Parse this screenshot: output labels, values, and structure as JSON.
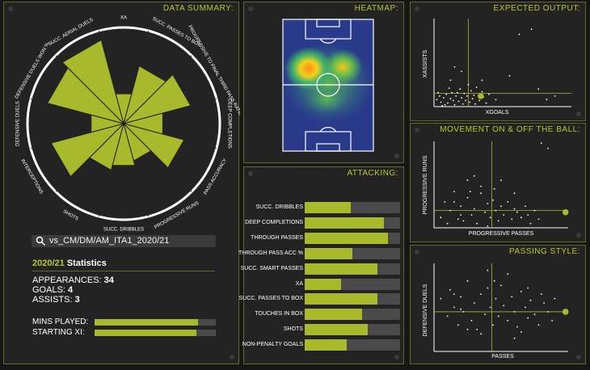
{
  "summary": {
    "title": "DATA SUMMARY:",
    "search_value": "vs_CM/DM/AM_ITA1_2020/21",
    "stats_year": "2020/21",
    "stats_label": "Statistics",
    "appearances_label": "APPEARANCES:",
    "appearances_value": "34",
    "goals_label": "GOALS:",
    "goals_value": "4",
    "assists_label": "ASSISTS:",
    "assists_value": "3",
    "mins_label": "MINS PLAYED:",
    "mins_fraction": 0.85,
    "starting_label": "STARTING XI:",
    "starting_fraction": 0.84
  },
  "heatmap": {
    "title": "HEATMAP:"
  },
  "attacking": {
    "title": "ATTACKING:"
  },
  "expected": {
    "title": "EXPECTED OUTPUT:",
    "xlabel": "XGOALS",
    "ylabel": "XASSISTS"
  },
  "movement": {
    "title": "MOVEMENT ON & OFF THE BALL:",
    "xlabel": "PROGRESSIVE PASSES",
    "ylabel": "PROGRESSIVE RUNS"
  },
  "passing": {
    "title": "PASSING STYLE:",
    "xlabel": "PASSES",
    "ylabel": "DEFENSIVE DUELS"
  },
  "colors": {
    "accent": "#a8b92c",
    "title": "#b7c92e",
    "panel": "#232323",
    "border": "#5f6a2a"
  },
  "chart_data": [
    {
      "type": "radar",
      "title": "DATA SUMMARY",
      "categories": [
        "XA",
        "SUCC. PASSES TO BOX",
        "PROGRESSIVE TO FINAL THIRD PASS RATIO",
        "DEEP COMPLETIONS",
        "PASS ACCURACY",
        "PROGRESSIVE RUNS",
        "SUCC. DRIBBLES",
        "SHOTS",
        "INTERCEPTIONS",
        "DEFENSIVE DUELS",
        "DEFENSIVE DUELS WON %",
        "SUCC. AERIAL DUELS"
      ],
      "values": [
        0.32,
        0.62,
        0.72,
        0.42,
        0.65,
        0.4,
        0.45,
        0.5,
        0.78,
        0.35,
        0.82,
        0.9
      ],
      "ylim": [
        0,
        1
      ]
    },
    {
      "type": "bar",
      "title": "ATTACKING",
      "categories": [
        "SUCC. DRIBBLES",
        "DEEP COMPLETIONS",
        "THROUGH PASSES",
        "THROUGH PASS ACC %",
        "SUCC. SMART PASSES",
        "XA",
        "SUCC. PASSES TO BOX",
        "TOUCHES IN BOX",
        "SHOTS",
        "NON-PENALTY GOALS"
      ],
      "values": [
        0.48,
        0.83,
        0.87,
        0.5,
        0.76,
        0.38,
        0.76,
        0.6,
        0.66,
        0.44
      ],
      "ylim": [
        0,
        1
      ]
    },
    {
      "type": "scatter",
      "title": "EXPECTED OUTPUT",
      "xlabel": "XGOALS",
      "ylabel": "XASSISTS",
      "xlim": [
        0,
        1
      ],
      "ylim": [
        0,
        1
      ],
      "ref_x": 0.25,
      "ref_y": 0.15,
      "highlight": [
        0.34,
        0.12
      ],
      "points": [
        [
          0.02,
          0.08
        ],
        [
          0.05,
          0.05
        ],
        [
          0.07,
          0.1
        ],
        [
          0.09,
          0.14
        ],
        [
          0.1,
          0.04
        ],
        [
          0.12,
          0.09
        ],
        [
          0.13,
          0.16
        ],
        [
          0.15,
          0.02
        ],
        [
          0.16,
          0.12
        ],
        [
          0.18,
          0.06
        ],
        [
          0.19,
          0.2
        ],
        [
          0.2,
          0.1
        ],
        [
          0.21,
          0.03
        ],
        [
          0.22,
          0.15
        ],
        [
          0.23,
          0.07
        ],
        [
          0.24,
          0.12
        ],
        [
          0.25,
          0.25
        ],
        [
          0.26,
          0.05
        ],
        [
          0.27,
          0.18
        ],
        [
          0.28,
          0.09
        ],
        [
          0.29,
          0.13
        ],
        [
          0.3,
          0.03
        ],
        [
          0.31,
          0.22
        ],
        [
          0.33,
          0.07
        ],
        [
          0.35,
          0.17
        ],
        [
          0.36,
          0.11
        ],
        [
          0.38,
          0.04
        ],
        [
          0.4,
          0.14
        ],
        [
          0.03,
          0.16
        ],
        [
          0.06,
          0.01
        ],
        [
          0.11,
          0.21
        ],
        [
          0.14,
          0.07
        ],
        [
          0.17,
          0.16
        ],
        [
          0.04,
          0.12
        ],
        [
          0.08,
          0.02
        ],
        [
          0.45,
          0.08
        ],
        [
          0.12,
          0.3
        ],
        [
          0.55,
          0.35
        ],
        [
          0.62,
          0.82
        ],
        [
          0.71,
          0.88
        ],
        [
          0.82,
          0.08
        ],
        [
          0.88,
          0.12
        ],
        [
          0.76,
          0.2
        ],
        [
          0.15,
          0.45
        ],
        [
          0.35,
          0.3
        ],
        [
          0.2,
          0.4
        ]
      ]
    },
    {
      "type": "scatter",
      "title": "MOVEMENT ON & OFF THE BALL",
      "xlabel": "PROGRESSIVE PASSES",
      "ylabel": "PROGRESSIVE RUNS",
      "xlim": [
        0,
        1
      ],
      "ylim": [
        0,
        1
      ],
      "ref_x": 0.43,
      "ref_y": 0.2,
      "highlight": [
        0.98,
        0.18
      ],
      "points": [
        [
          0.05,
          0.12
        ],
        [
          0.1,
          0.05
        ],
        [
          0.12,
          0.2
        ],
        [
          0.15,
          0.3
        ],
        [
          0.18,
          0.1
        ],
        [
          0.2,
          0.25
        ],
        [
          0.22,
          0.08
        ],
        [
          0.25,
          0.35
        ],
        [
          0.28,
          0.15
        ],
        [
          0.3,
          0.22
        ],
        [
          0.32,
          0.05
        ],
        [
          0.35,
          0.4
        ],
        [
          0.38,
          0.18
        ],
        [
          0.4,
          0.28
        ],
        [
          0.42,
          0.12
        ],
        [
          0.44,
          0.32
        ],
        [
          0.46,
          0.2
        ],
        [
          0.48,
          0.08
        ],
        [
          0.5,
          0.25
        ],
        [
          0.52,
          0.15
        ],
        [
          0.55,
          0.3
        ],
        [
          0.58,
          0.1
        ],
        [
          0.6,
          0.22
        ],
        [
          0.62,
          0.18
        ],
        [
          0.65,
          0.12
        ],
        [
          0.68,
          0.25
        ],
        [
          0.7,
          0.15
        ],
        [
          0.72,
          0.05
        ],
        [
          0.75,
          0.2
        ],
        [
          0.78,
          0.1
        ],
        [
          0.3,
          0.6
        ],
        [
          0.25,
          0.55
        ],
        [
          0.45,
          0.45
        ],
        [
          0.8,
          0.98
        ],
        [
          0.85,
          0.92
        ],
        [
          0.15,
          0.42
        ],
        [
          0.35,
          0.48
        ],
        [
          0.08,
          0.3
        ],
        [
          0.4,
          0.02
        ],
        [
          0.6,
          0.4
        ],
        [
          0.2,
          0.15
        ],
        [
          0.27,
          0.42
        ],
        [
          0.5,
          0.55
        ]
      ]
    },
    {
      "type": "scatter",
      "title": "PASSING STYLE",
      "xlabel": "PASSES",
      "ylabel": "DEFENSIVE DUELS",
      "xlim": [
        0,
        1
      ],
      "ylim": [
        0,
        1
      ],
      "ref_x": 0.43,
      "ref_y": 0.45,
      "highlight": [
        0.98,
        0.45
      ],
      "points": [
        [
          0.05,
          0.6
        ],
        [
          0.1,
          0.4
        ],
        [
          0.12,
          0.7
        ],
        [
          0.15,
          0.5
        ],
        [
          0.18,
          0.3
        ],
        [
          0.2,
          0.62
        ],
        [
          0.22,
          0.45
        ],
        [
          0.25,
          0.8
        ],
        [
          0.28,
          0.35
        ],
        [
          0.3,
          0.55
        ],
        [
          0.32,
          0.25
        ],
        [
          0.35,
          0.65
        ],
        [
          0.38,
          0.42
        ],
        [
          0.4,
          0.72
        ],
        [
          0.42,
          0.5
        ],
        [
          0.44,
          0.3
        ],
        [
          0.46,
          0.6
        ],
        [
          0.48,
          0.4
        ],
        [
          0.5,
          0.75
        ],
        [
          0.52,
          0.52
        ],
        [
          0.55,
          0.35
        ],
        [
          0.58,
          0.62
        ],
        [
          0.6,
          0.45
        ],
        [
          0.62,
          0.28
        ],
        [
          0.65,
          0.68
        ],
        [
          0.68,
          0.5
        ],
        [
          0.7,
          0.38
        ],
        [
          0.72,
          0.58
        ],
        [
          0.75,
          0.42
        ],
        [
          0.78,
          0.3
        ],
        [
          0.8,
          0.65
        ],
        [
          0.82,
          0.55
        ],
        [
          0.85,
          0.45
        ],
        [
          0.88,
          0.35
        ],
        [
          0.9,
          0.6
        ],
        [
          0.4,
          0.92
        ],
        [
          0.35,
          0.2
        ],
        [
          0.6,
          0.15
        ],
        [
          0.2,
          0.48
        ],
        [
          0.15,
          0.65
        ],
        [
          0.55,
          0.88
        ],
        [
          0.45,
          0.8
        ],
        [
          0.7,
          0.72
        ],
        [
          0.25,
          0.25
        ],
        [
          0.65,
          0.22
        ]
      ]
    }
  ]
}
